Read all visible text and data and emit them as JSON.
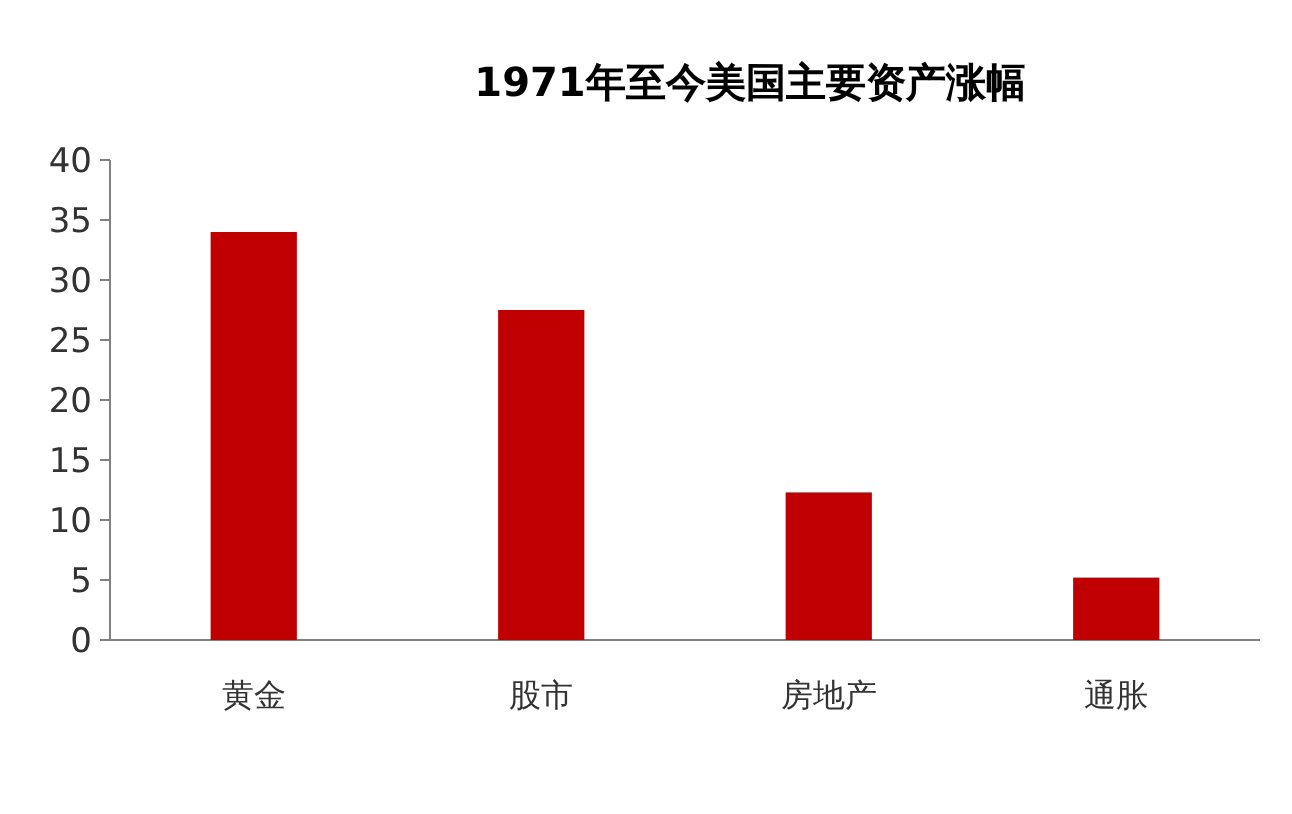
{
  "chart_data": {
    "type": "bar",
    "title": "1971年至今美国主要资产涨幅",
    "categories": [
      "黄金",
      "股市",
      "房地产",
      "通胀"
    ],
    "values": [
      34,
      27.5,
      12.3,
      5.2
    ],
    "color": "#c00000",
    "ylim": [
      0,
      40
    ],
    "yticks": [
      0,
      5,
      10,
      15,
      20,
      25,
      30,
      35,
      40
    ]
  }
}
